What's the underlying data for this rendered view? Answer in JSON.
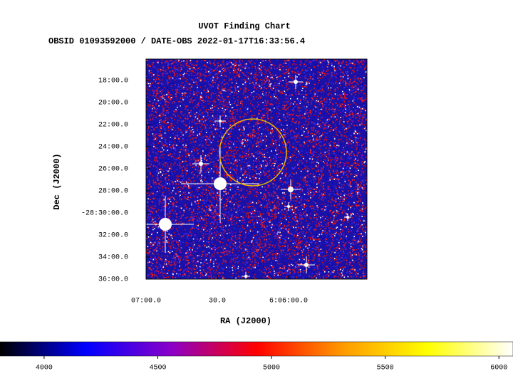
{
  "chart_data": {
    "type": "image",
    "title": "UVOT Finding Chart",
    "subtitle": "OBSID 01093592000 / DATE-OBS 2022-01-17T16:33:56.4",
    "xlabel": "RA (J2000)",
    "ylabel": "Dec (J2000)",
    "xlim": [
      22020,
      21927
    ],
    "xticks": [
      {
        "value": 22020,
        "label": "07:00.0"
      },
      {
        "value": 21990,
        "label": "30.0"
      },
      {
        "value": 21960,
        "label": "6:06:00.0"
      }
    ],
    "ylim": [
      -28.6,
      -28.268
    ],
    "yticks": [
      {
        "value": -28.3,
        "label": "18:00.0"
      },
      {
        "value": -28.3333,
        "label": "20:00.0"
      },
      {
        "value": -28.3667,
        "label": "22:00.0"
      },
      {
        "value": -28.4,
        "label": "24:00.0"
      },
      {
        "value": -28.4333,
        "label": "26:00.0"
      },
      {
        "value": -28.4667,
        "label": "28:00.0"
      },
      {
        "value": -28.5,
        "label": "-28:30:00.0"
      },
      {
        "value": -28.5333,
        "label": "32:00.0"
      },
      {
        "value": -28.5667,
        "label": "34:00.0"
      },
      {
        "value": -28.6,
        "label": "36:00.0"
      }
    ],
    "colorbar": {
      "clim": [
        3806,
        6062
      ],
      "ticks": [
        4000,
        4500,
        5000,
        5500,
        6000
      ],
      "colors": [
        "#000000",
        "#0000ff",
        "#8a00c8",
        "#ff0000",
        "#ff9900",
        "#ffff00",
        "#ffffff"
      ]
    },
    "region_color": "#e8b400"
  }
}
